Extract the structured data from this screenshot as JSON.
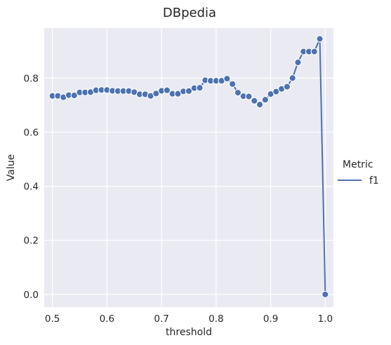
{
  "chart_data": {
    "type": "line",
    "title": "DBpedia",
    "xlabel": "threshold",
    "ylabel": "Value",
    "xlim": [
      0.485,
      1.015
    ],
    "ylim": [
      -0.047,
      0.985
    ],
    "xticks": [
      0.5,
      0.6,
      0.7,
      0.8,
      0.9,
      1.0
    ],
    "xtick_labels": [
      "0.5",
      "0.6",
      "0.7",
      "0.8",
      "0.9",
      "1.0"
    ],
    "yticks": [
      0.0,
      0.2,
      0.4,
      0.6,
      0.8
    ],
    "ytick_labels": [
      "0.0",
      "0.2",
      "0.4",
      "0.6",
      "0.8"
    ],
    "grid": true,
    "legend": {
      "title": "Metric",
      "placement": "right"
    },
    "series": [
      {
        "name": "f1",
        "color": "#4c72b0",
        "marker": "circle",
        "x": [
          0.5,
          0.51,
          0.52,
          0.53,
          0.54,
          0.55,
          0.56,
          0.57,
          0.58,
          0.59,
          0.6,
          0.61,
          0.62,
          0.63,
          0.64,
          0.65,
          0.66,
          0.67,
          0.68,
          0.69,
          0.7,
          0.71,
          0.72,
          0.73,
          0.74,
          0.75,
          0.76,
          0.77,
          0.78,
          0.79,
          0.8,
          0.81,
          0.82,
          0.83,
          0.84,
          0.85,
          0.86,
          0.87,
          0.88,
          0.89,
          0.9,
          0.91,
          0.92,
          0.93,
          0.94,
          0.95,
          0.96,
          0.97,
          0.98,
          0.99,
          1.0
        ],
        "y": [
          0.734,
          0.734,
          0.729,
          0.737,
          0.736,
          0.747,
          0.747,
          0.748,
          0.755,
          0.756,
          0.756,
          0.753,
          0.752,
          0.752,
          0.752,
          0.748,
          0.74,
          0.74,
          0.734,
          0.743,
          0.753,
          0.755,
          0.742,
          0.742,
          0.751,
          0.752,
          0.763,
          0.764,
          0.792,
          0.79,
          0.79,
          0.79,
          0.798,
          0.778,
          0.746,
          0.733,
          0.732,
          0.716,
          0.702,
          0.72,
          0.741,
          0.75,
          0.76,
          0.768,
          0.8,
          0.858,
          0.898,
          0.898,
          0.898,
          0.945,
          0.0
        ]
      }
    ]
  }
}
